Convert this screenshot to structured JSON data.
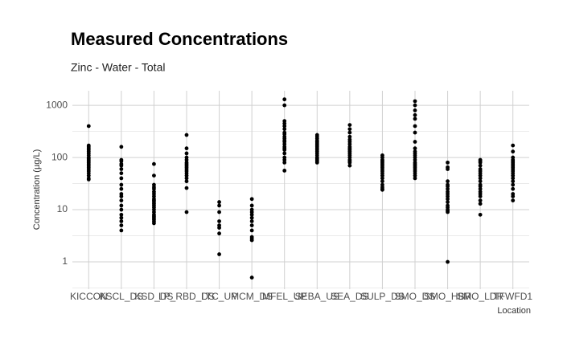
{
  "chart_data": {
    "type": "strip",
    "title": "Measured Concentrations",
    "subtitle": "Zinc - Water - Total",
    "x_label": "Location",
    "y_label": "Concentration (µg/L)",
    "categories": [
      "KICCON",
      "KSCL_DS",
      "KSD_DS",
      "LP_RBD_DS",
      "LTC_UP",
      "MCM_DS",
      "MFEL_UP",
      "SEBA_US",
      "SEA_DS",
      "SULP_DS",
      "SMO_DS",
      "SMO_HBR",
      "SMO_LDR",
      "TFWFD1"
    ],
    "values": [
      [
        400,
        170,
        160,
        150,
        140,
        130,
        120,
        110,
        100,
        95,
        90,
        85,
        80,
        75,
        70,
        65,
        60,
        55,
        50,
        45,
        40,
        38
      ],
      [
        160,
        90,
        85,
        75,
        70,
        60,
        50,
        40,
        30,
        25,
        20,
        18,
        15,
        12,
        10,
        8,
        7,
        6,
        5,
        4
      ],
      [
        75,
        45,
        30,
        27,
        25,
        22,
        20,
        18,
        16,
        15,
        14,
        13,
        12,
        11,
        10,
        9,
        8,
        7.5,
        7,
        6.5,
        6,
        5.5
      ],
      [
        270,
        150,
        120,
        100,
        90,
        80,
        75,
        70,
        65,
        60,
        55,
        50,
        45,
        40,
        35,
        26,
        9
      ],
      [
        14,
        12,
        9,
        6,
        5,
        4.5,
        3.5,
        1.4
      ],
      [
        16,
        12,
        10,
        9,
        8,
        7,
        6,
        5,
        4,
        3,
        2.8,
        2.6,
        0.5
      ],
      [
        1300,
        1000,
        500,
        450,
        400,
        350,
        300,
        280,
        250,
        230,
        210,
        200,
        180,
        160,
        150,
        140,
        120,
        100,
        90,
        80,
        56
      ],
      [
        270,
        250,
        230,
        210,
        200,
        190,
        180,
        170,
        160,
        150,
        140,
        130,
        120,
        110,
        100,
        95,
        90,
        85,
        80
      ],
      [
        420,
        350,
        300,
        250,
        220,
        200,
        180,
        160,
        150,
        140,
        130,
        120,
        110,
        100,
        90,
        85,
        80,
        70
      ],
      [
        110,
        100,
        90,
        85,
        80,
        75,
        70,
        65,
        60,
        55,
        50,
        45,
        40,
        35,
        30,
        27,
        25,
        24
      ],
      [
        1200,
        1000,
        800,
        650,
        550,
        400,
        300,
        200,
        150,
        130,
        120,
        110,
        100,
        90,
        80,
        75,
        70,
        65,
        60,
        55,
        50,
        45,
        40
      ],
      [
        80,
        65,
        60,
        35,
        30,
        28,
        25,
        22,
        20,
        18,
        16,
        14,
        12,
        11,
        10,
        9.5,
        9,
        1
      ],
      [
        90,
        85,
        80,
        70,
        60,
        55,
        50,
        45,
        40,
        35,
        30,
        28,
        25,
        22,
        20,
        18,
        15,
        13,
        8
      ],
      [
        170,
        130,
        100,
        90,
        85,
        80,
        75,
        70,
        65,
        60,
        55,
        50,
        45,
        40,
        35,
        30,
        25,
        20,
        18,
        15
      ]
    ],
    "color": "#000000",
    "log_y": true,
    "ylim": [
      0.3,
      1900
    ],
    "yticks": [
      1,
      10,
      100,
      1000
    ],
    "grid": true
  }
}
